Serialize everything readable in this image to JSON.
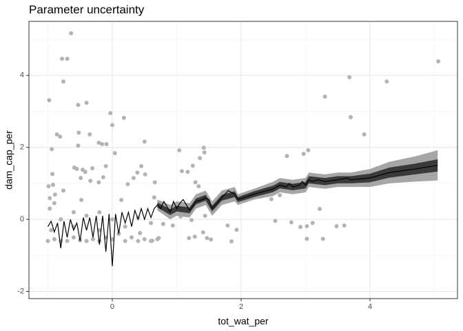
{
  "chart_data": {
    "type": "scatter",
    "title": "Parameter uncertainty",
    "x_label": "tot_wat_per",
    "y_label": "dam_cap_per",
    "xlim": [
      -1.294,
      5.358
    ],
    "ylim": [
      -2.2,
      5.5
    ],
    "xticks": [
      0,
      2,
      4
    ],
    "yticks": [
      -2,
      0,
      2,
      4
    ],
    "x_minor_ticks": [
      -1,
      1,
      3,
      5
    ],
    "y_minor_ticks": [
      -1,
      1,
      3,
      5
    ],
    "grid": true,
    "points": {
      "color": "#b3b3b3",
      "x": [
        -0.64,
        -0.78,
        -0.7,
        -0.76,
        -0.98,
        -0.4,
        -0.53,
        -0.03,
        0.0,
        0.18,
        -0.86,
        -0.81,
        -0.52,
        -0.35,
        0.5,
        -0.21,
        -0.16,
        -0.09,
        -0.53,
        0.04,
        -0.94,
        1.04,
        1.42,
        1.43,
        1.36,
        1.25,
        1.08,
        1.17,
        -0.59,
        -0.55,
        -0.46,
        -0.42,
        -0.31,
        -0.1,
        0.45,
        0.39,
        0.51,
        0.33,
        0.24,
        -0.93,
        -0.92,
        -0.99,
        -0.49,
        -0.34,
        -0.14,
        -0.21,
        0.66,
        1.34,
        1.29,
        -0.76,
        -0.89,
        -0.97,
        0.14,
        -0.48,
        0.65,
        0.74,
        0.9,
        1.06,
        1.18,
        1.23,
        1.44,
        1.79,
        1.93,
        1.85,
        1.41,
        1.47,
        1.28,
        1.53,
        1.19,
        0.94,
        0.79,
        0.72,
        0.62,
        0.43,
        2.53,
        2.47,
        2.6,
        2.71,
        2.78,
        2.92,
        2.97,
        3.02,
        3.04,
        3.02,
        3.11,
        3.22,
        3.27,
        3.3,
        3.48,
        3.6,
        3.68,
        3.7,
        3.91,
        4.26,
        5.06,
        -1.0,
        -0.9,
        -0.8,
        -0.7,
        -0.6,
        -0.5,
        -0.4,
        -0.3,
        -0.2,
        -0.1,
        0.0,
        0.1,
        0.2,
        0.3,
        0.4,
        0.5,
        0.6,
        0.7,
        -0.95,
        -0.8,
        -0.6,
        -0.4,
        -0.2,
        0.0,
        0.2,
        0.4,
        0.6,
        -0.97,
        -0.9,
        -0.6,
        -0.2
      ],
      "y": [
        5.17,
        4.46,
        4.46,
        3.83,
        3.31,
        3.24,
        3.18,
        2.95,
        2.62,
        2.82,
        2.36,
        2.3,
        2.41,
        2.36,
        2.16,
        2.13,
        2.09,
        2.09,
        2.05,
        1.84,
        1.95,
        1.92,
        1.99,
        1.86,
        1.7,
        1.49,
        1.34,
        1.32,
        1.44,
        1.4,
        1.38,
        1.32,
        1.42,
        1.48,
        1.48,
        1.3,
        1.25,
        1.15,
        0.98,
        1.26,
        0.96,
        0.92,
        1.15,
        1.07,
        1.17,
        1.03,
        1.03,
        0.92,
        1.03,
        0.8,
        0.69,
        0.59,
        0.54,
        0.54,
        0.61,
        0.34,
        0.25,
        0.08,
        0.19,
        -0.02,
        0.1,
        -0.17,
        -0.29,
        -0.61,
        -0.36,
        -0.52,
        -0.48,
        -0.56,
        -0.52,
        -0.17,
        -0.13,
        -0.52,
        -0.59,
        -0.38,
        -0.04,
        0.56,
        0.67,
        1.76,
        -0.08,
        -0.21,
        1.82,
        -0.19,
        1.92,
        -0.54,
        -0.1,
        0.29,
        -0.54,
        3.41,
        -0.19,
        -0.17,
        3.95,
        2.84,
        2.36,
        3.83,
        4.39,
        -0.6,
        -0.55,
        -0.6,
        -0.6,
        -0.5,
        -0.58,
        -0.6,
        -0.55,
        -0.6,
        -0.5,
        -0.55,
        -0.4,
        -0.6,
        -0.5,
        -0.6,
        -0.55,
        -0.6,
        -0.55,
        -0.3,
        0.0,
        -0.2,
        0.1,
        -0.3,
        0.0,
        -0.2,
        0.05,
        -0.1,
        0.3,
        0.45,
        0.2,
        0.2
      ]
    },
    "ribbon_x": [
      0.7,
      0.9,
      1.0,
      1.2,
      1.3,
      1.45,
      1.55,
      1.7,
      1.9,
      1.95,
      2.2,
      2.5,
      2.6,
      2.8,
      3.0,
      3.05,
      3.3,
      3.5,
      3.7,
      4.0,
      4.3,
      4.7,
      5.05
    ],
    "ribbons": [
      {
        "color": "#a6a6a6",
        "lower": [
          0.25,
          0.0,
          0.1,
          0.05,
          0.3,
          0.4,
          0.1,
          0.4,
          0.5,
          0.4,
          0.55,
          0.65,
          0.75,
          0.7,
          0.75,
          0.9,
          0.85,
          0.9,
          0.9,
          0.9,
          1.0,
          1.05,
          1.08
        ],
        "upper": [
          0.55,
          0.4,
          0.5,
          0.45,
          0.7,
          0.8,
          0.5,
          0.8,
          0.9,
          0.7,
          0.85,
          1.05,
          1.15,
          1.1,
          1.15,
          1.3,
          1.25,
          1.3,
          1.3,
          1.4,
          1.6,
          1.75,
          1.92
        ]
      },
      {
        "color": "#3a3a3a",
        "lower": [
          0.33,
          0.12,
          0.22,
          0.17,
          0.42,
          0.52,
          0.22,
          0.52,
          0.62,
          0.48,
          0.62,
          0.76,
          0.86,
          0.81,
          0.86,
          1.0,
          0.95,
          1.0,
          1.0,
          1.03,
          1.16,
          1.25,
          1.33
        ],
        "upper": [
          0.47,
          0.28,
          0.38,
          0.33,
          0.58,
          0.68,
          0.38,
          0.68,
          0.78,
          0.62,
          0.78,
          0.94,
          1.04,
          0.99,
          1.04,
          1.2,
          1.15,
          1.2,
          1.2,
          1.27,
          1.44,
          1.55,
          1.67
        ]
      }
    ],
    "line": {
      "color": "#000000",
      "x": [
        -1.0,
        -0.95,
        -0.9,
        -0.85,
        -0.8,
        -0.75,
        -0.7,
        -0.65,
        -0.6,
        -0.55,
        -0.5,
        -0.45,
        -0.4,
        -0.35,
        -0.3,
        -0.25,
        -0.2,
        -0.15,
        -0.1,
        -0.05,
        0.0,
        0.05,
        0.1,
        0.15,
        0.2,
        0.25,
        0.3,
        0.35,
        0.4,
        0.45,
        0.5,
        0.55,
        0.6,
        0.65,
        0.7,
        0.75,
        0.8,
        0.85,
        0.9,
        0.95,
        1.0,
        1.05,
        1.1,
        1.15,
        1.2,
        1.3,
        1.4,
        1.45,
        1.5,
        1.55,
        1.7,
        1.8,
        1.9,
        1.95,
        2.2,
        2.5,
        2.6,
        2.7,
        2.75,
        2.8,
        2.9,
        2.95,
        3.0,
        3.05,
        3.1,
        3.2,
        3.3,
        3.5,
        3.65,
        3.7,
        4.0,
        4.3,
        4.7,
        5.05
      ],
      "y": [
        -0.2,
        -0.05,
        -0.35,
        -0.1,
        -0.8,
        -0.05,
        -0.5,
        0.0,
        -0.3,
        -0.1,
        -0.6,
        0.05,
        -0.3,
        0.05,
        -0.5,
        0.1,
        -0.7,
        0.1,
        -0.9,
        0.15,
        -1.3,
        0.15,
        -0.4,
        0.2,
        -0.1,
        0.2,
        -0.2,
        0.25,
        0.0,
        0.3,
        0.0,
        0.3,
        0.05,
        0.3,
        0.4,
        0.3,
        0.5,
        0.35,
        0.2,
        0.5,
        0.3,
        0.45,
        0.55,
        0.4,
        0.25,
        0.5,
        0.55,
        0.6,
        0.55,
        0.3,
        0.6,
        0.8,
        0.7,
        0.55,
        0.7,
        0.85,
        0.95,
        0.9,
        1.0,
        0.9,
        0.95,
        1.05,
        0.95,
        1.1,
        1.05,
        1.1,
        1.05,
        1.1,
        1.15,
        1.1,
        1.15,
        1.3,
        1.4,
        1.5
      ]
    }
  }
}
